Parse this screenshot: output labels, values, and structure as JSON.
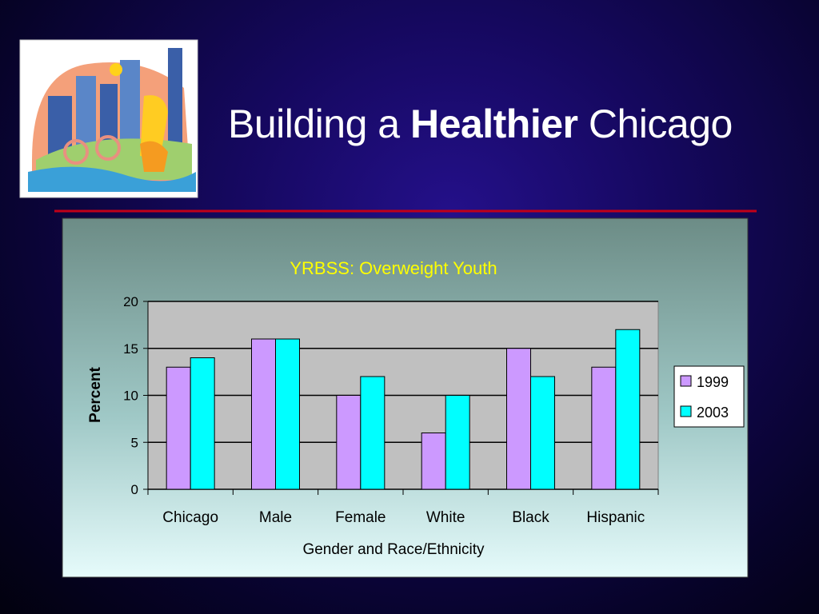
{
  "slide": {
    "title": [
      "Building a",
      "Healthier",
      "Chicago"
    ]
  },
  "chart_data": {
    "type": "bar",
    "title": "YRBSS: Overweight Youth",
    "xlabel": "Gender and Race/Ethnicity",
    "ylabel": "Percent",
    "categories": [
      "Chicago",
      "Male",
      "Female",
      "White",
      "Black",
      "Hispanic"
    ],
    "series": [
      {
        "name": "1999",
        "color": "#cc99ff",
        "values": [
          13,
          16,
          10,
          6,
          15,
          13
        ]
      },
      {
        "name": "2003",
        "color": "#00ffff",
        "values": [
          14,
          16,
          12,
          10,
          12,
          17
        ]
      }
    ],
    "ylim": [
      0,
      20
    ],
    "yticks": [
      0,
      5,
      10,
      15,
      20
    ],
    "grid": true,
    "legend": "right"
  }
}
